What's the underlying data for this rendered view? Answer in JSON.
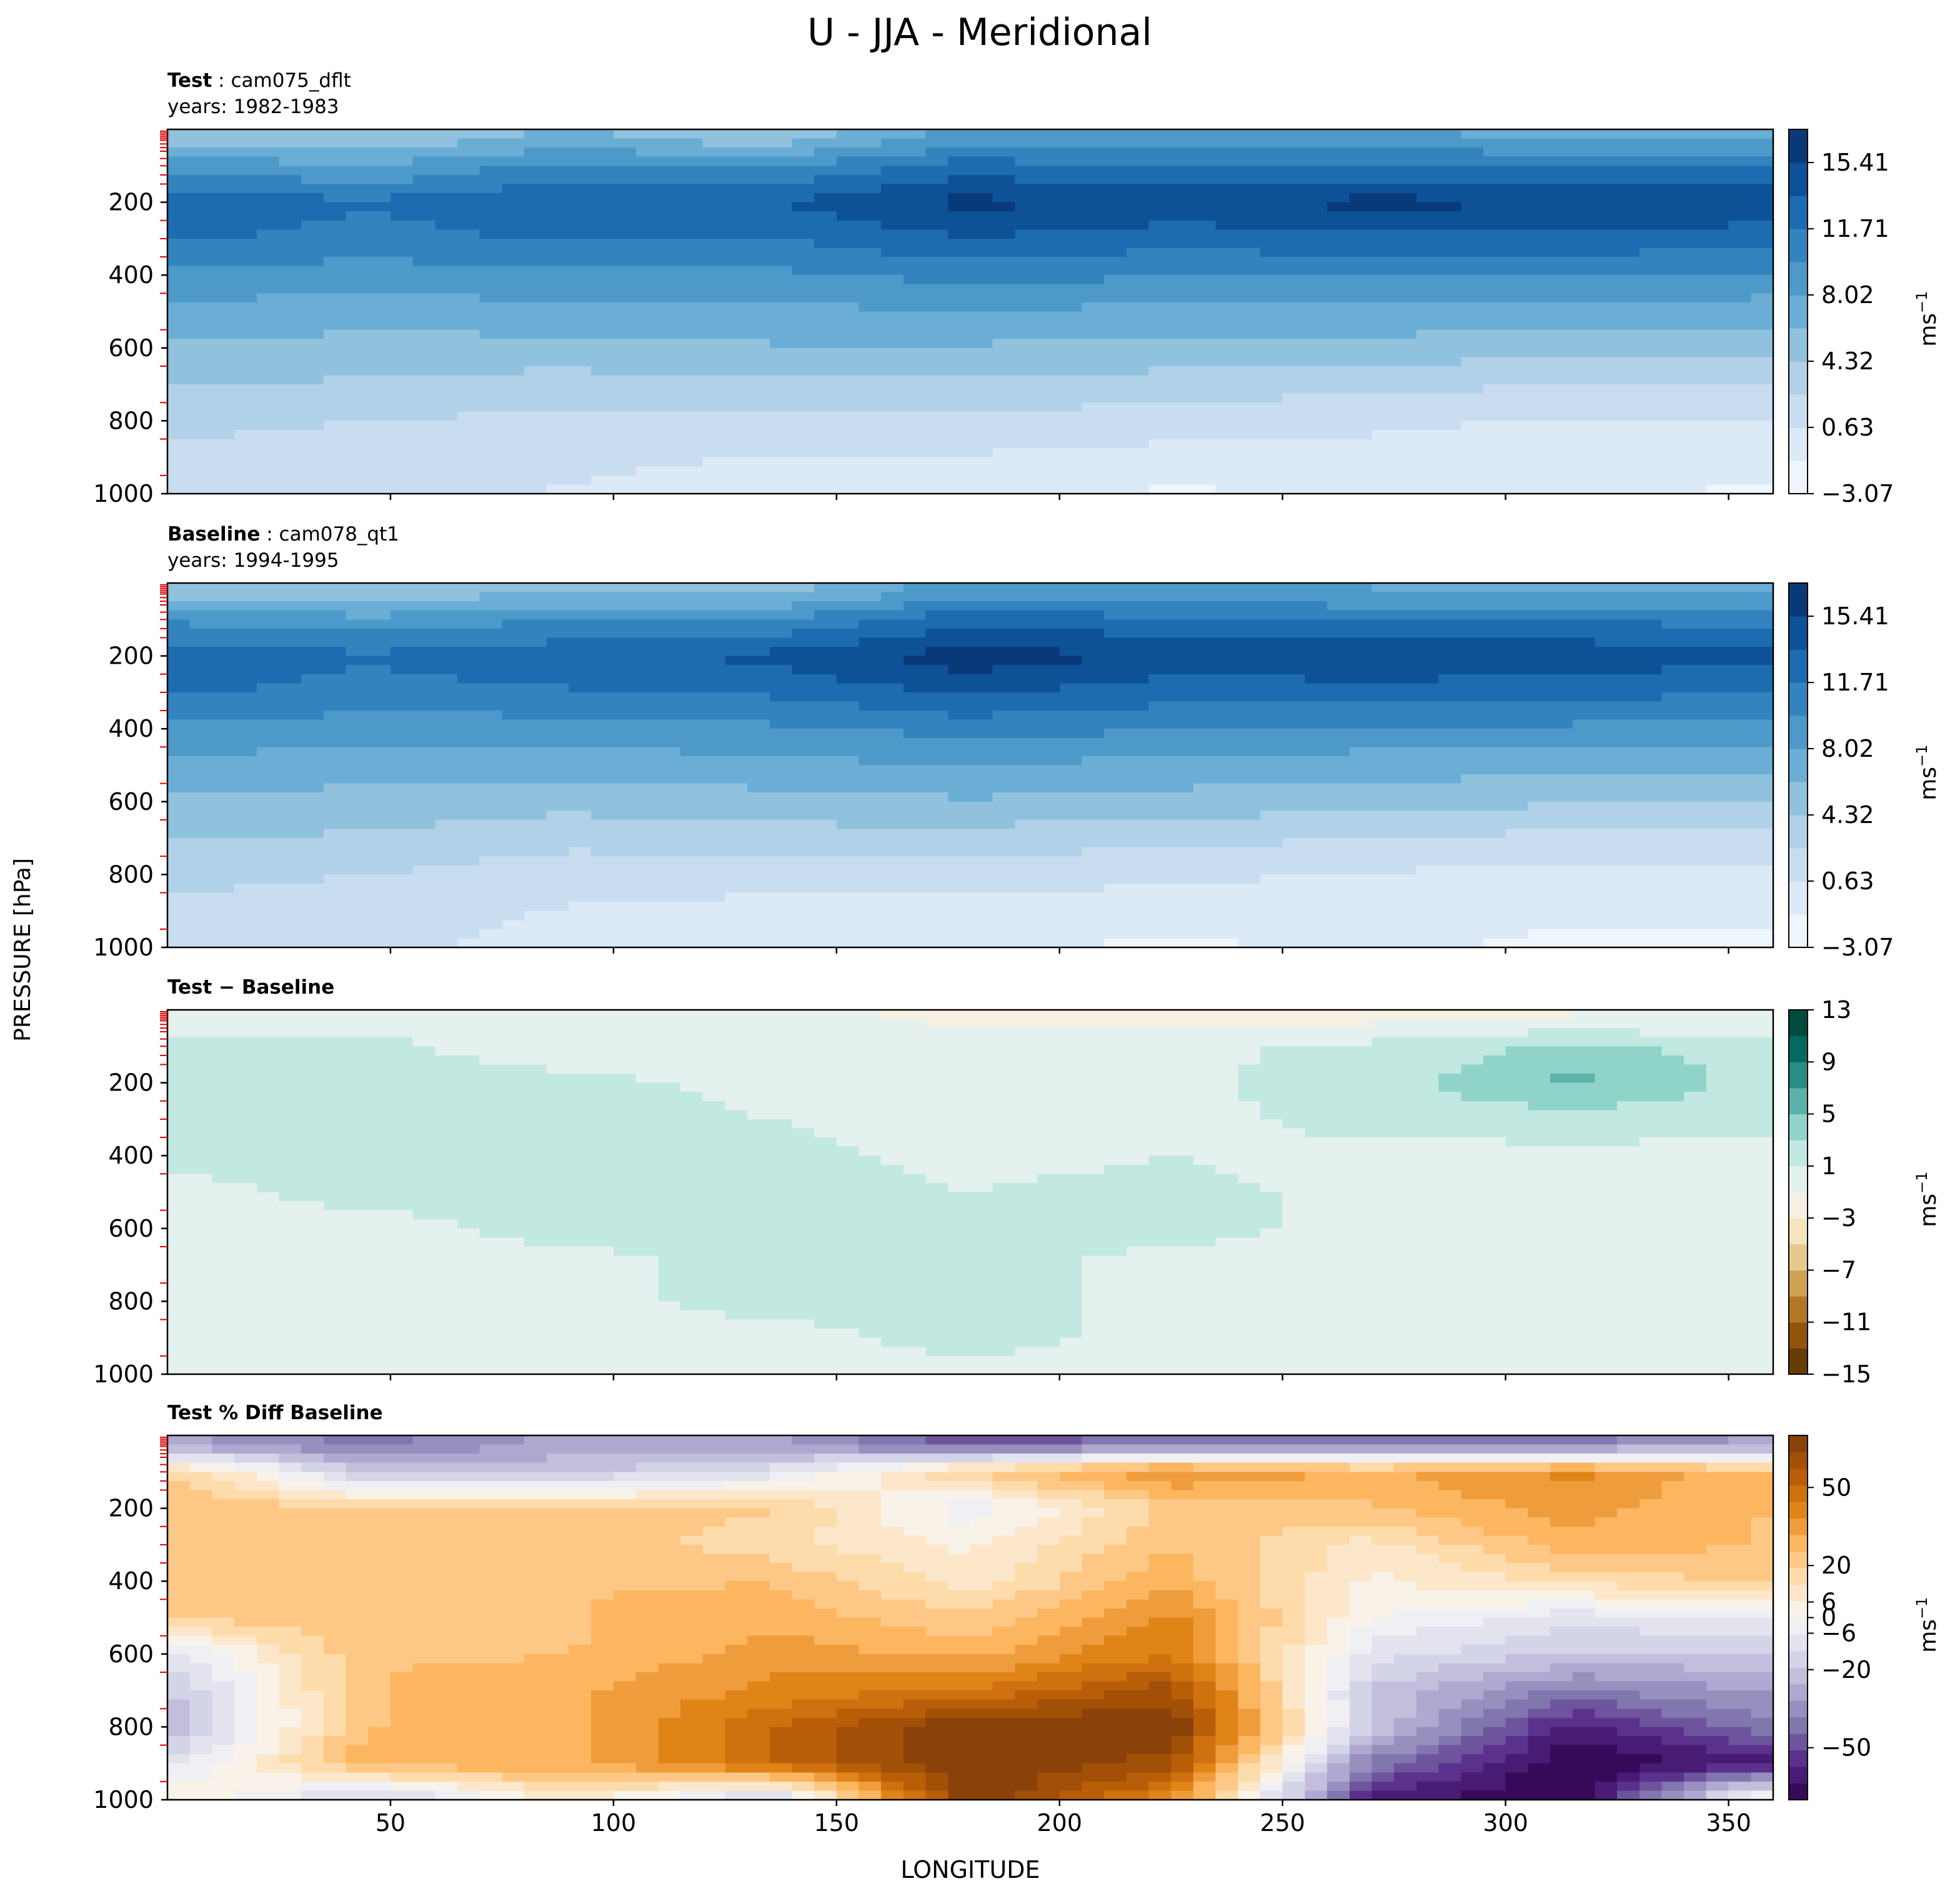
{
  "figure": {
    "title": "U - JJA - Meridional",
    "ylabel": "PRESSURE [hPa]",
    "xlabel": "LONGITUDE",
    "units": "ms",
    "units_exp": "−1"
  },
  "colors": {
    "blues": [
      "#f7fbff",
      "#e3eef8",
      "#d0e1f2",
      "#b7d4ea",
      "#94c4df",
      "#6aaed6",
      "#4a98c9",
      "#2e7ebc",
      "#1764ab",
      "#08468b",
      "#08306b"
    ],
    "brbg": [
      "#543005",
      "#8c510a",
      "#bf812d",
      "#dfc27d",
      "#f6e8c3",
      "#f5f5f5",
      "#c7eae5",
      "#80cdc1",
      "#35978f",
      "#01665e",
      "#003c30"
    ],
    "puor": [
      "#2d004b",
      "#542788",
      "#8073ac",
      "#b2abd2",
      "#d8daeb",
      "#f7f7f7",
      "#fee0b6",
      "#fdb863",
      "#e08214",
      "#b35806",
      "#7f3b08"
    ]
  },
  "panels": [
    {
      "bold": "Test",
      "sep": " : ",
      "name": "cam075_dflt",
      "years": "years: 1982-1983",
      "colorbar": {
        "ticks": [
          "15.41",
          "11.71",
          "8.02",
          "4.32",
          "0.63",
          "−3.07"
        ],
        "range": [
          -3.07,
          17.26
        ],
        "levels": 11
      }
    },
    {
      "bold": "Baseline",
      "sep": " : ",
      "name": "cam078_qt1",
      "years": "years: 1994-1995",
      "colorbar": {
        "ticks": [
          "15.41",
          "11.71",
          "8.02",
          "4.32",
          "0.63",
          "−3.07"
        ],
        "range": [
          -3.07,
          17.26
        ],
        "levels": 11
      }
    },
    {
      "bold": "Test − Baseline",
      "sep": "",
      "name": "",
      "years": "",
      "colorbar": {
        "ticks": [
          "13",
          "9",
          "5",
          "1",
          "−3",
          "−7",
          "−11",
          "−15"
        ],
        "range": [
          -15,
          13
        ],
        "levels": 14
      }
    },
    {
      "bold": "Test % Diff Baseline",
      "sep": "",
      "name": "",
      "years": "",
      "colorbar": {
        "ticks": [
          "50",
          "20",
          "6",
          "0",
          "−6",
          "−20",
          "−50"
        ],
        "range": [
          -70,
          70
        ],
        "levels": 22
      }
    }
  ],
  "chart_data": [
    {
      "type": "heatmap",
      "title": "Test : cam075_dflt",
      "xlabel": "",
      "ylabel": "",
      "xlim": [
        0,
        360
      ],
      "ylim": [
        1000,
        0
      ],
      "yticks": [
        "200",
        "400",
        "600",
        "800",
        "1000"
      ],
      "xticks": [],
      "colorbar_ticks": [
        15.41,
        11.71,
        8.02,
        4.32,
        0.63,
        -3.07
      ],
      "x": [
        0,
        45,
        90,
        135,
        180,
        225,
        270,
        315,
        360
      ],
      "y": [
        25,
        100,
        200,
        300,
        400,
        500,
        600,
        700,
        800,
        900,
        1000
      ],
      "values": [
        [
          5.5,
          5.0,
          6.5,
          5.0,
          9.0,
          8.5,
          8.5,
          7.5,
          8.0
        ],
        [
          9.5,
          8.0,
          10.5,
          9.5,
          12.5,
          11.5,
          12.0,
          11.5,
          11.5
        ],
        [
          13.0,
          12.0,
          13.5,
          13.5,
          16.0,
          15.0,
          16.0,
          15.5,
          15.0
        ],
        [
          12.0,
          11.0,
          12.0,
          11.5,
          13.5,
          12.5,
          13.0,
          13.0,
          12.5
        ],
        [
          9.5,
          9.0,
          9.5,
          9.5,
          10.5,
          10.0,
          10.0,
          10.0,
          9.5
        ],
        [
          7.5,
          7.0,
          7.5,
          7.5,
          8.0,
          7.5,
          7.5,
          7.5,
          7.0
        ],
        [
          6.0,
          5.5,
          5.5,
          6.0,
          6.0,
          5.5,
          5.5,
          5.0,
          5.0
        ],
        [
          4.5,
          4.0,
          3.5,
          4.0,
          4.0,
          3.5,
          3.0,
          2.5,
          2.5
        ],
        [
          3.0,
          2.5,
          2.0,
          2.0,
          2.0,
          1.5,
          1.0,
          0.5,
          0.5
        ],
        [
          2.0,
          1.5,
          1.0,
          0.5,
          0.5,
          0.0,
          0.0,
          -0.5,
          -0.5
        ],
        [
          1.5,
          1.0,
          0.5,
          0.0,
          -0.5,
          -1.5,
          -1.0,
          -1.0,
          -1.5
        ]
      ]
    },
    {
      "type": "heatmap",
      "title": "Baseline : cam078_qt1",
      "xlabel": "",
      "ylabel": "PRESSURE [hPa]",
      "xlim": [
        0,
        360
      ],
      "ylim": [
        1000,
        0
      ],
      "yticks": [
        "200",
        "400",
        "600",
        "800",
        "1000"
      ],
      "xticks": [],
      "colorbar_ticks": [
        15.41,
        11.71,
        8.02,
        4.32,
        0.63,
        -3.07
      ],
      "x": [
        0,
        45,
        90,
        135,
        180,
        225,
        270,
        315,
        360
      ],
      "y": [
        25,
        100,
        200,
        300,
        400,
        500,
        600,
        700,
        800,
        900,
        1000
      ],
      "values": [
        [
          5.5,
          5.0,
          6.0,
          5.5,
          9.0,
          8.5,
          8.0,
          7.5,
          7.5
        ],
        [
          9.5,
          8.5,
          10.0,
          10.0,
          13.0,
          12.0,
          11.5,
          11.5,
          11.0
        ],
        [
          13.0,
          12.0,
          13.0,
          14.0,
          16.5,
          15.0,
          15.5,
          15.0,
          14.0
        ],
        [
          12.0,
          11.0,
          11.5,
          12.0,
          14.0,
          12.5,
          12.5,
          12.5,
          11.5
        ],
        [
          9.5,
          9.0,
          9.0,
          9.5,
          10.5,
          10.0,
          9.5,
          9.5,
          9.0
        ],
        [
          7.5,
          7.0,
          7.0,
          7.5,
          8.0,
          7.5,
          7.0,
          7.0,
          6.5
        ],
        [
          6.0,
          5.5,
          5.0,
          5.5,
          6.0,
          5.5,
          5.0,
          4.5,
          4.5
        ],
        [
          4.5,
          4.0,
          3.0,
          3.5,
          3.5,
          3.0,
          2.5,
          2.0,
          2.0
        ],
        [
          3.0,
          2.5,
          1.5,
          1.5,
          1.5,
          1.0,
          0.5,
          0.0,
          0.0
        ],
        [
          2.0,
          1.5,
          0.5,
          0.0,
          0.0,
          -0.5,
          -0.5,
          -1.0,
          -1.0
        ],
        [
          1.5,
          1.0,
          0.0,
          -0.5,
          -1.0,
          -1.5,
          -1.0,
          -1.5,
          -1.5
        ]
      ]
    },
    {
      "type": "heatmap",
      "title": "Test − Baseline",
      "xlabel": "",
      "ylabel": "",
      "xlim": [
        0,
        360
      ],
      "ylim": [
        1000,
        0
      ],
      "yticks": [
        "200",
        "400",
        "600",
        "800",
        "1000"
      ],
      "xticks": [],
      "colorbar_ticks": [
        13,
        9,
        5,
        1,
        -3,
        -7,
        -11,
        -15
      ],
      "x": [
        0,
        45,
        90,
        135,
        180,
        225,
        270,
        315,
        360
      ],
      "y": [
        25,
        100,
        200,
        300,
        400,
        500,
        600,
        700,
        800,
        900,
        1000
      ],
      "values": [
        [
          0.5,
          0.0,
          -1.0,
          -0.5,
          -1.5,
          -1.5,
          -1.5,
          -1.0,
          -1.0
        ],
        [
          1.5,
          1.5,
          0.0,
          0.5,
          0.5,
          0.5,
          1.5,
          3.5,
          2.0
        ],
        [
          1.5,
          1.5,
          1.5,
          0.5,
          0.5,
          0.5,
          2.0,
          5.5,
          2.0
        ],
        [
          1.5,
          1.5,
          1.5,
          1.0,
          0.5,
          0.5,
          1.5,
          2.0,
          1.5
        ],
        [
          1.5,
          1.5,
          1.5,
          1.5,
          0.5,
          1.0,
          0.5,
          0.5,
          0.5
        ],
        [
          0.5,
          1.5,
          1.5,
          1.5,
          1.0,
          1.5,
          0.5,
          0.5,
          0.5
        ],
        [
          0.5,
          0.5,
          1.5,
          1.5,
          1.5,
          1.5,
          0.5,
          0.5,
          0.5
        ],
        [
          0.5,
          0.5,
          0.5,
          1.5,
          1.5,
          0.5,
          0.5,
          0.5,
          0.5
        ],
        [
          0.5,
          0.5,
          0.5,
          1.5,
          1.5,
          0.5,
          0.5,
          0.5,
          0.5
        ],
        [
          0.5,
          0.5,
          0.5,
          0.5,
          1.5,
          0.5,
          0.5,
          0.5,
          0.5
        ],
        [
          0.5,
          0.5,
          0.5,
          0.5,
          0.5,
          0.5,
          0.5,
          0.5,
          0.5
        ]
      ]
    },
    {
      "type": "heatmap",
      "title": "Test % Diff Baseline",
      "xlabel": "LONGITUDE",
      "ylabel": "",
      "xlim": [
        0,
        360
      ],
      "ylim": [
        1000,
        0
      ],
      "yticks": [
        "200",
        "400",
        "600",
        "800",
        "1000"
      ],
      "xticks": [
        "50",
        "100",
        "150",
        "200",
        "250",
        "300",
        "350"
      ],
      "colorbar_ticks": [
        50,
        20,
        6,
        0,
        -6,
        -20,
        -50
      ],
      "x": [
        0,
        45,
        90,
        135,
        180,
        225,
        270,
        315,
        360
      ],
      "y": [
        25,
        100,
        200,
        300,
        400,
        500,
        600,
        700,
        800,
        900,
        1000
      ],
      "values": [
        [
          -30,
          -40,
          -30,
          -30,
          -50,
          -40,
          -40,
          -40,
          -30
        ],
        [
          20,
          -20,
          -20,
          -10,
          20,
          40,
          30,
          40,
          25
        ],
        [
          25,
          20,
          20,
          20,
          -5,
          20,
          25,
          35,
          25
        ],
        [
          25,
          25,
          25,
          15,
          5,
          25,
          10,
          30,
          25
        ],
        [
          25,
          25,
          25,
          25,
          10,
          30,
          5,
          15,
          20
        ],
        [
          20,
          25,
          25,
          30,
          20,
          40,
          0,
          -10,
          -5
        ],
        [
          -10,
          25,
          25,
          35,
          30,
          45,
          -10,
          -20,
          -20
        ],
        [
          -20,
          25,
          30,
          40,
          45,
          60,
          -20,
          -40,
          -30
        ],
        [
          -25,
          25,
          30,
          50,
          70,
          70,
          -20,
          -60,
          -40
        ],
        [
          -10,
          30,
          30,
          50,
          70,
          60,
          -40,
          -70,
          -60
        ],
        [
          10,
          -20,
          10,
          -20,
          70,
          40,
          -60,
          -70,
          10
        ]
      ]
    }
  ]
}
